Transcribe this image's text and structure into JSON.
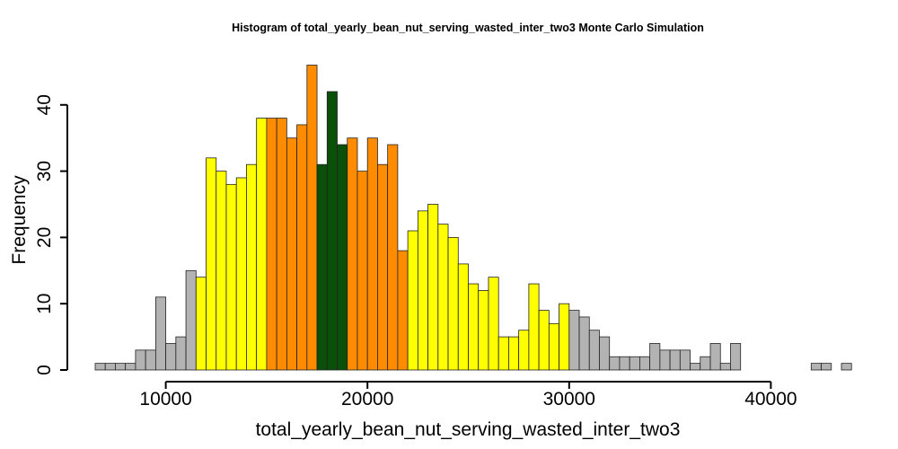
{
  "chart_data": {
    "type": "bar",
    "title": "Histogram of  total_yearly_bean_nut_serving_wasted_inter_two3  Monte Carlo Simulation",
    "xlabel": "total_yearly_bean_nut_serving_wasted_inter_two3",
    "ylabel": "Frequency",
    "bin_start": 6500,
    "bin_width": 500,
    "values": [
      1,
      1,
      1,
      1,
      3,
      3,
      11,
      4,
      5,
      15,
      14,
      32,
      30,
      28,
      29,
      31,
      38,
      38,
      38,
      35,
      37,
      46,
      31,
      42,
      34,
      35,
      30,
      35,
      31,
      34,
      18,
      21,
      24,
      25,
      22,
      20,
      16,
      13,
      12,
      14,
      5,
      5,
      6,
      13,
      9,
      7,
      10,
      9,
      8,
      6,
      5,
      2,
      2,
      2,
      2,
      4,
      3,
      3,
      3,
      1,
      2,
      4,
      1,
      4,
      0,
      0,
      0,
      0,
      0,
      0,
      0,
      1,
      1,
      0,
      1
    ],
    "colors": {
      "outer": "#b3b3b3",
      "middle": "#ffff00",
      "inner": "#ff8c00",
      "center": "#0a4f0a"
    },
    "color_ranges": [
      {
        "from": 6500,
        "to": 11500,
        "color": "outer"
      },
      {
        "from": 11500,
        "to": 15000,
        "color": "middle"
      },
      {
        "from": 15000,
        "to": 17500,
        "color": "inner"
      },
      {
        "from": 17500,
        "to": 19000,
        "color": "center"
      },
      {
        "from": 19000,
        "to": 22000,
        "color": "inner"
      },
      {
        "from": 22000,
        "to": 30000,
        "color": "middle"
      },
      {
        "from": 30000,
        "to": 44000,
        "color": "outer"
      }
    ],
    "xlim": [
      6500,
      43500
    ],
    "ylim": [
      0,
      46
    ],
    "x_ticks": [
      10000,
      20000,
      30000,
      40000
    ],
    "y_ticks": [
      0,
      10,
      20,
      30,
      40
    ],
    "grid": false,
    "legend": "none"
  }
}
